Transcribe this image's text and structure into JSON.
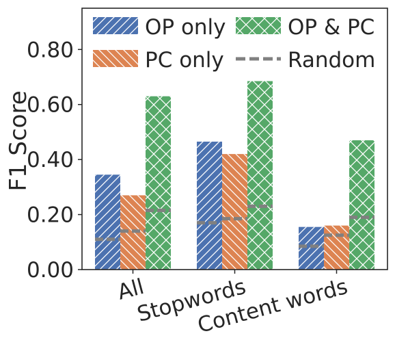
{
  "chart_data": {
    "type": "bar",
    "title": "",
    "xlabel": "",
    "ylabel": "F1 Score",
    "ylim": [
      0,
      0.95
    ],
    "yticks": [
      0.0,
      0.2,
      0.4,
      0.6,
      0.8
    ],
    "ytick_labels": [
      "0.00",
      "0.20",
      "0.40",
      "0.60",
      "0.80"
    ],
    "categories": [
      "All",
      "Stopwords",
      "Content words"
    ],
    "series": [
      {
        "name": "OP only",
        "values": [
          0.345,
          0.465,
          0.155
        ],
        "random": [
          0.11,
          0.17,
          0.085
        ],
        "color": "#4c72b0",
        "hatch": "diag-forward"
      },
      {
        "name": "PC only",
        "values": [
          0.27,
          0.42,
          0.16
        ],
        "random": [
          0.14,
          0.185,
          0.125
        ],
        "color": "#dd8452",
        "hatch": "diag-back"
      },
      {
        "name": "OP & PC",
        "values": [
          0.63,
          0.685,
          0.47
        ],
        "random": [
          0.215,
          0.23,
          0.19
        ],
        "color": "#55a868",
        "hatch": "cross"
      }
    ],
    "random_label": "Random",
    "random_color": "#808080",
    "grid": false,
    "legend": {
      "placement": "top",
      "entries": [
        "OP only",
        "OP & PC",
        "PC only",
        "Random"
      ]
    }
  }
}
